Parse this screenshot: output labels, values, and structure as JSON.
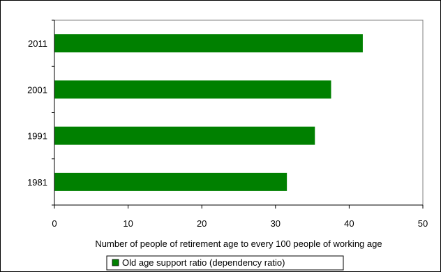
{
  "chart_data": {
    "type": "bar",
    "orientation": "horizontal",
    "categories": [
      "1981",
      "1991",
      "2001",
      "2011"
    ],
    "series": [
      {
        "name": "Old age support ratio (dependency ratio)",
        "values": [
          31.5,
          35.3,
          37.5,
          41.8
        ],
        "color": "#008000"
      }
    ],
    "xlabel": "Number of people of retirement age to every 100 people of working age",
    "ylabel": "",
    "xlim": [
      0,
      50
    ],
    "xticks": [
      "0",
      "10",
      "20",
      "30",
      "40",
      "50"
    ],
    "grid": false,
    "plot_background": "#ffffff",
    "legend_position": "bottom"
  }
}
